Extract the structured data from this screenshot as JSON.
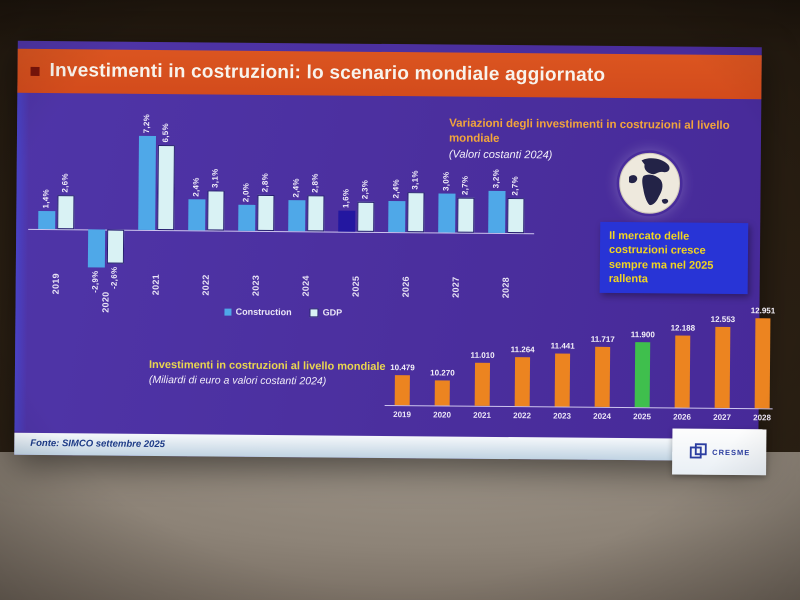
{
  "header": {
    "title": "Investimenti in costruzioni: lo scenario mondiale aggiornato"
  },
  "growth_chart": {
    "title": "Variazioni degli investimenti in costruzioni al livello mondiale",
    "subtitle": "(Valori costanti 2024)",
    "legend": [
      {
        "label": "Construction",
        "color": "#4fa8e8"
      },
      {
        "label": "GDP",
        "color": "#d9f2f4"
      }
    ]
  },
  "note_box": {
    "text": "Il mercato delle costruzioni cresce sempre ma nel 2025 rallenta",
    "bg": "#2834d6",
    "text_color": "#f2d51f"
  },
  "investment_chart_title": {
    "line1": "Investimenti in costruzioni al livello mondiale",
    "line2": "(Miliardi di euro a valori costanti 2024)"
  },
  "footer": {
    "source": "Fonte: SIMCO settembre 2025",
    "logo_text": "CRESME"
  },
  "chart_data": [
    {
      "type": "bar",
      "title": "Variazioni degli investimenti in costruzioni al livello mondiale (Valori costanti 2024)",
      "categories": [
        "2019",
        "2020",
        "2021",
        "2022",
        "2023",
        "2024",
        "2025",
        "2026",
        "2027",
        "2028"
      ],
      "series": [
        {
          "name": "Construction",
          "values": [
            1.4,
            -2.9,
            7.2,
            2.4,
            2.0,
            2.4,
            1.6,
            2.4,
            3.0,
            3.2
          ],
          "labels": [
            "1,4%",
            "-2,9%",
            "7,2%",
            "2,4%",
            "2,0%",
            "2,4%",
            "1,6%",
            "2,4%",
            "3,0%",
            "3,2%"
          ],
          "color": "#4fa8e8",
          "highlight_index": 6,
          "highlight_color": "#2317a0"
        },
        {
          "name": "GDP",
          "values": [
            2.6,
            -2.6,
            6.5,
            3.1,
            2.8,
            2.8,
            2.3,
            3.1,
            2.7,
            2.7
          ],
          "labels": [
            "2,6%",
            "-2,6%",
            "6,5%",
            "3,1%",
            "2,8%",
            "2,8%",
            "2,3%",
            "3,1%",
            "2,7%",
            "2,7%"
          ],
          "color": "#d9f2f4"
        }
      ],
      "value_suffix": "%",
      "ylim": [
        -4,
        8
      ],
      "legend_position": "bottom",
      "grid": false
    },
    {
      "type": "bar",
      "title": "Investimenti in costruzioni al livello mondiale (Miliardi di euro a valori costanti 2024)",
      "categories": [
        "2019",
        "2020",
        "2021",
        "2022",
        "2023",
        "2024",
        "2025",
        "2026",
        "2027",
        "2028"
      ],
      "values": [
        10479,
        10270,
        11010,
        11264,
        11441,
        11717,
        11900,
        12188,
        12553,
        12951
      ],
      "labels": [
        "10.479",
        "10.270",
        "11.010",
        "11.264",
        "11.441",
        "11.717",
        "11.900",
        "12.188",
        "12.553",
        "12.951"
      ],
      "bar_color": "#ec8420",
      "highlight_index": 6,
      "highlight_color": "#3fbf4d",
      "grid": false
    }
  ],
  "colors": {
    "header_bar": "#d8511f",
    "slide_background": "#4b2f9e",
    "accent_yellow": "#f2a53b"
  }
}
